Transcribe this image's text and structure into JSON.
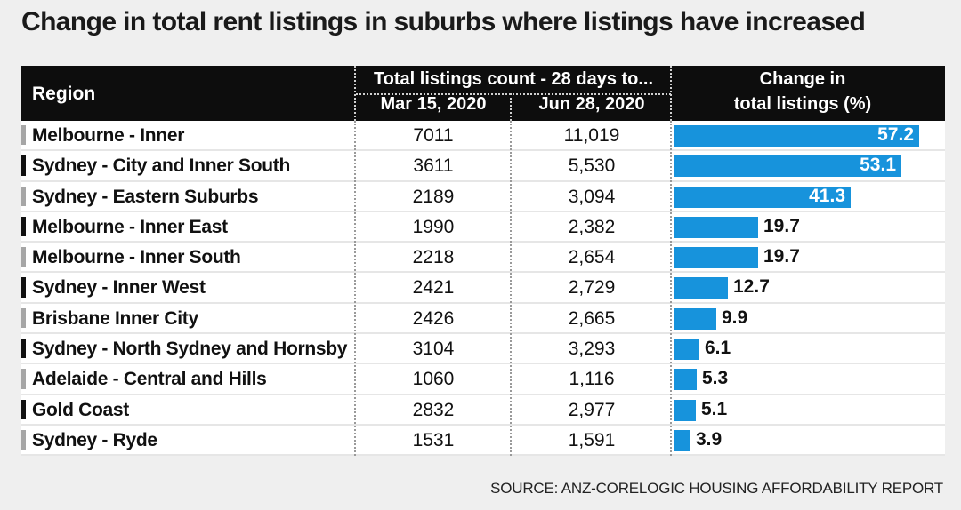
{
  "title": "Change in total rent listings in suburbs where listings have increased",
  "source": "SOURCE: ANZ-CORELOGIC HOUSING AFFORDABILITY REPORT",
  "colors": {
    "bar": "#1793dc",
    "header_bg": "#0d0d0d",
    "accent_dark": "#111111",
    "accent_light": "#a6a6a6"
  },
  "chart_data": {
    "type": "table",
    "columns": {
      "region": "Region",
      "group": "Total listings count - 28 days to...",
      "col1": "Mar 15, 2020",
      "col2": "Jun 28, 2020",
      "change_line1": "Change in",
      "change_line2": "total listings (%)"
    },
    "xlim": [
      0,
      57.2
    ],
    "rows": [
      {
        "region": "Melbourne - Inner",
        "mar": "7011",
        "jun": "11,019",
        "change": 57.2,
        "change_label": "57.2",
        "accent": "light"
      },
      {
        "region": "Sydney - City and Inner South",
        "mar": "3611",
        "jun": "5,530",
        "change": 53.1,
        "change_label": "53.1",
        "accent": "dark"
      },
      {
        "region": "Sydney - Eastern Suburbs",
        "mar": "2189",
        "jun": "3,094",
        "change": 41.3,
        "change_label": "41.3",
        "accent": "light"
      },
      {
        "region": "Melbourne - Inner East",
        "mar": "1990",
        "jun": "2,382",
        "change": 19.7,
        "change_label": "19.7",
        "accent": "dark"
      },
      {
        "region": "Melbourne - Inner South",
        "mar": "2218",
        "jun": "2,654",
        "change": 19.7,
        "change_label": "19.7",
        "accent": "light"
      },
      {
        "region": "Sydney - Inner West",
        "mar": "2421",
        "jun": "2,729",
        "change": 12.7,
        "change_label": "12.7",
        "accent": "dark"
      },
      {
        "region": "Brisbane Inner City",
        "mar": "2426",
        "jun": "2,665",
        "change": 9.9,
        "change_label": "9.9",
        "accent": "light"
      },
      {
        "region": "Sydney - North Sydney and Hornsby",
        "mar": "3104",
        "jun": "3,293",
        "change": 6.1,
        "change_label": "6.1",
        "accent": "dark"
      },
      {
        "region": "Adelaide - Central and Hills",
        "mar": "1060",
        "jun": "1,116",
        "change": 5.3,
        "change_label": "5.3",
        "accent": "light"
      },
      {
        "region": "Gold Coast",
        "mar": "2832",
        "jun": "2,977",
        "change": 5.1,
        "change_label": "5.1",
        "accent": "dark"
      },
      {
        "region": "Sydney - Ryde",
        "mar": "1531",
        "jun": "1,591",
        "change": 3.9,
        "change_label": "3.9",
        "accent": "light"
      }
    ]
  }
}
